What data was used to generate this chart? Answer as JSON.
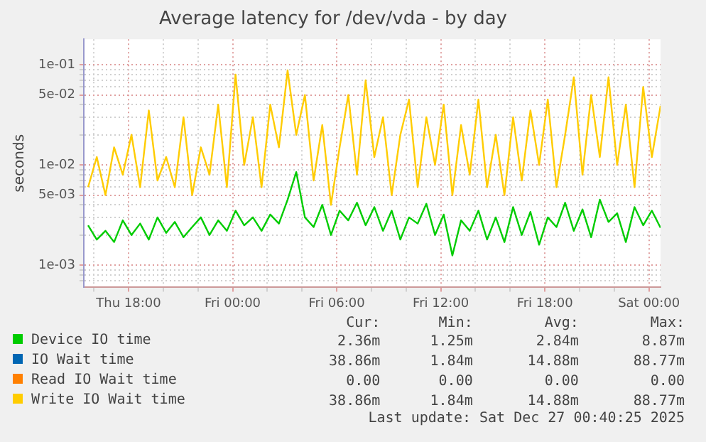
{
  "chart_data": {
    "type": "line",
    "title": "Average latency for /dev/vda - by day",
    "ylabel": "seconds",
    "x": [
      "2025-12-25T15:40",
      "2025-12-25T16:10",
      "2025-12-25T16:40",
      "2025-12-25T17:10",
      "2025-12-25T17:40",
      "2025-12-25T18:10",
      "2025-12-25T18:40",
      "2025-12-25T19:10",
      "2025-12-25T19:40",
      "2025-12-25T20:10",
      "2025-12-25T20:40",
      "2025-12-25T21:10",
      "2025-12-25T21:40",
      "2025-12-25T22:10",
      "2025-12-25T22:40",
      "2025-12-25T23:10",
      "2025-12-25T23:40",
      "2025-12-26T00:10",
      "2025-12-26T00:40",
      "2025-12-26T01:10",
      "2025-12-26T01:40",
      "2025-12-26T02:10",
      "2025-12-26T02:40",
      "2025-12-26T03:10",
      "2025-12-26T03:40",
      "2025-12-26T04:10",
      "2025-12-26T04:40",
      "2025-12-26T05:10",
      "2025-12-26T05:40",
      "2025-12-26T06:10",
      "2025-12-26T06:40",
      "2025-12-26T07:10",
      "2025-12-26T07:40",
      "2025-12-26T08:10",
      "2025-12-26T08:40",
      "2025-12-26T09:10",
      "2025-12-26T09:40",
      "2025-12-26T10:10",
      "2025-12-26T10:40",
      "2025-12-26T11:10",
      "2025-12-26T11:40",
      "2025-12-26T12:10",
      "2025-12-26T12:40",
      "2025-12-26T13:10",
      "2025-12-26T13:40",
      "2025-12-26T14:10",
      "2025-12-26T14:40",
      "2025-12-26T15:10",
      "2025-12-26T15:40",
      "2025-12-26T16:10",
      "2025-12-26T16:40",
      "2025-12-26T17:10",
      "2025-12-26T17:40",
      "2025-12-26T18:10",
      "2025-12-26T18:40",
      "2025-12-26T19:10",
      "2025-12-26T19:40",
      "2025-12-26T20:10",
      "2025-12-26T20:40",
      "2025-12-26T21:10",
      "2025-12-26T21:40",
      "2025-12-26T22:10",
      "2025-12-26T22:40",
      "2025-12-26T23:10",
      "2025-12-26T23:40",
      "2025-12-27T00:10",
      "2025-12-27T00:40"
    ],
    "series": [
      {
        "name": "Device IO time",
        "color": "#00cc00",
        "values": [
          0.0025,
          0.0018,
          0.0022,
          0.0017,
          0.0028,
          0.002,
          0.0026,
          0.0018,
          0.003,
          0.0021,
          0.0027,
          0.0019,
          0.0024,
          0.003,
          0.002,
          0.0028,
          0.0022,
          0.0035,
          0.0025,
          0.003,
          0.0022,
          0.0032,
          0.0026,
          0.0045,
          0.0085,
          0.003,
          0.0024,
          0.004,
          0.002,
          0.0035,
          0.0028,
          0.0042,
          0.0025,
          0.0038,
          0.0022,
          0.0035,
          0.0018,
          0.003,
          0.0026,
          0.0041,
          0.002,
          0.0032,
          0.00125,
          0.0028,
          0.0022,
          0.0035,
          0.0018,
          0.003,
          0.0017,
          0.0038,
          0.002,
          0.0034,
          0.0016,
          0.003,
          0.0024,
          0.0042,
          0.0022,
          0.0036,
          0.0019,
          0.0045,
          0.0027,
          0.0033,
          0.0017,
          0.0038,
          0.0025,
          0.0035,
          0.00236
        ]
      },
      {
        "name": "IO Wait time",
        "color": "#0066b3",
        "values": [
          null,
          null,
          null,
          null,
          null,
          null,
          null,
          null,
          null,
          null,
          null,
          null,
          null,
          null,
          null,
          null,
          null,
          null,
          null,
          null,
          null,
          null,
          null,
          null,
          null,
          null,
          null,
          null,
          null,
          null,
          null,
          null,
          null,
          null,
          null,
          null,
          null,
          null,
          null,
          null,
          null,
          null,
          null,
          null,
          null,
          null,
          null,
          null,
          null,
          null,
          null,
          null,
          null,
          null,
          null,
          null,
          null,
          null,
          null,
          null,
          null,
          null,
          null,
          null,
          null,
          null,
          null
        ]
      },
      {
        "name": "Read IO Wait time",
        "color": "#ff8000",
        "values": [
          null,
          null,
          null,
          null,
          null,
          null,
          null,
          null,
          null,
          null,
          null,
          null,
          null,
          null,
          null,
          null,
          null,
          null,
          null,
          null,
          null,
          null,
          null,
          null,
          null,
          null,
          null,
          null,
          null,
          null,
          null,
          null,
          null,
          null,
          null,
          null,
          null,
          null,
          null,
          null,
          null,
          null,
          null,
          null,
          null,
          null,
          null,
          null,
          null,
          null,
          null,
          null,
          null,
          null,
          null,
          null,
          null,
          null,
          null,
          null,
          null,
          null,
          null,
          null,
          null,
          null,
          null
        ]
      },
      {
        "name": "Write IO Wait time",
        "color": "#ffcc00",
        "values": [
          0.006,
          0.012,
          0.005,
          0.015,
          0.008,
          0.02,
          0.006,
          0.035,
          0.007,
          0.012,
          0.006,
          0.03,
          0.005,
          0.015,
          0.008,
          0.04,
          0.006,
          0.08,
          0.01,
          0.03,
          0.006,
          0.04,
          0.015,
          0.088,
          0.02,
          0.05,
          0.007,
          0.025,
          0.004,
          0.015,
          0.05,
          0.008,
          0.07,
          0.012,
          0.03,
          0.005,
          0.02,
          0.045,
          0.006,
          0.03,
          0.01,
          0.04,
          0.005,
          0.025,
          0.008,
          0.045,
          0.006,
          0.02,
          0.005,
          0.03,
          0.007,
          0.035,
          0.01,
          0.045,
          0.006,
          0.02,
          0.075,
          0.008,
          0.05,
          0.012,
          0.075,
          0.01,
          0.04,
          0.006,
          0.06,
          0.012,
          0.039
        ]
      }
    ],
    "xlim": [
      "2025-12-25T15:25",
      "2025-12-27T00:40"
    ],
    "xticks": [
      {
        "value": "2025-12-25T16:00",
        "label": null
      },
      {
        "value": "2025-12-25T18:00",
        "label": "Thu 18:00"
      },
      {
        "value": "2025-12-25T20:00",
        "label": null
      },
      {
        "value": "2025-12-25T22:00",
        "label": null
      },
      {
        "value": "2025-12-26T00:00",
        "label": "Fri 00:00"
      },
      {
        "value": "2025-12-26T02:00",
        "label": null
      },
      {
        "value": "2025-12-26T04:00",
        "label": null
      },
      {
        "value": "2025-12-26T06:00",
        "label": "Fri 06:00"
      },
      {
        "value": "2025-12-26T08:00",
        "label": null
      },
      {
        "value": "2025-12-26T10:00",
        "label": null
      },
      {
        "value": "2025-12-26T12:00",
        "label": "Fri 12:00"
      },
      {
        "value": "2025-12-26T14:00",
        "label": null
      },
      {
        "value": "2025-12-26T16:00",
        "label": null
      },
      {
        "value": "2025-12-26T18:00",
        "label": "Fri 18:00"
      },
      {
        "value": "2025-12-26T20:00",
        "label": null
      },
      {
        "value": "2025-12-26T22:00",
        "label": null
      },
      {
        "value": "2025-12-27T00:00",
        "label": "Sat 00:00"
      }
    ],
    "ylim": [
      0.00062,
      0.18
    ],
    "yticks": [
      {
        "value": 0.0007,
        "label": null
      },
      {
        "value": 0.0008,
        "label": null
      },
      {
        "value": 0.0009,
        "label": null
      },
      {
        "value": 0.001,
        "label": "1e-03"
      },
      {
        "value": 0.002,
        "label": null
      },
      {
        "value": 0.003,
        "label": null
      },
      {
        "value": 0.004,
        "label": null
      },
      {
        "value": 0.005,
        "label": "5e-03"
      },
      {
        "value": 0.006,
        "label": null
      },
      {
        "value": 0.007,
        "label": null
      },
      {
        "value": 0.008,
        "label": null
      },
      {
        "value": 0.009,
        "label": null
      },
      {
        "value": 0.01,
        "label": "1e-02"
      },
      {
        "value": 0.02,
        "label": null
      },
      {
        "value": 0.03,
        "label": null
      },
      {
        "value": 0.04,
        "label": null
      },
      {
        "value": 0.05,
        "label": "5e-02"
      },
      {
        "value": 0.06,
        "label": null
      },
      {
        "value": 0.07,
        "label": null
      },
      {
        "value": 0.08,
        "label": null
      },
      {
        "value": 0.09,
        "label": null
      },
      {
        "value": 0.1,
        "label": "1e-01"
      }
    ],
    "log": "y",
    "grid": true,
    "legend": "bottom",
    "marker": "none",
    "line_style": "solid",
    "annotations": [
      "Cur:",
      "Min:",
      "Avg:",
      "Max:",
      "2.36m",
      "1.25m",
      "2.84m",
      "8.87m",
      "38.86m",
      "1.84m",
      "14.88m",
      "88.77m",
      "0.00",
      "0.00",
      "0.00",
      "0.00",
      "38.86m",
      "1.84m",
      "14.88m",
      "88.77m",
      "Last update: Sat Dec 27 00:40:25 2025"
    ]
  }
}
